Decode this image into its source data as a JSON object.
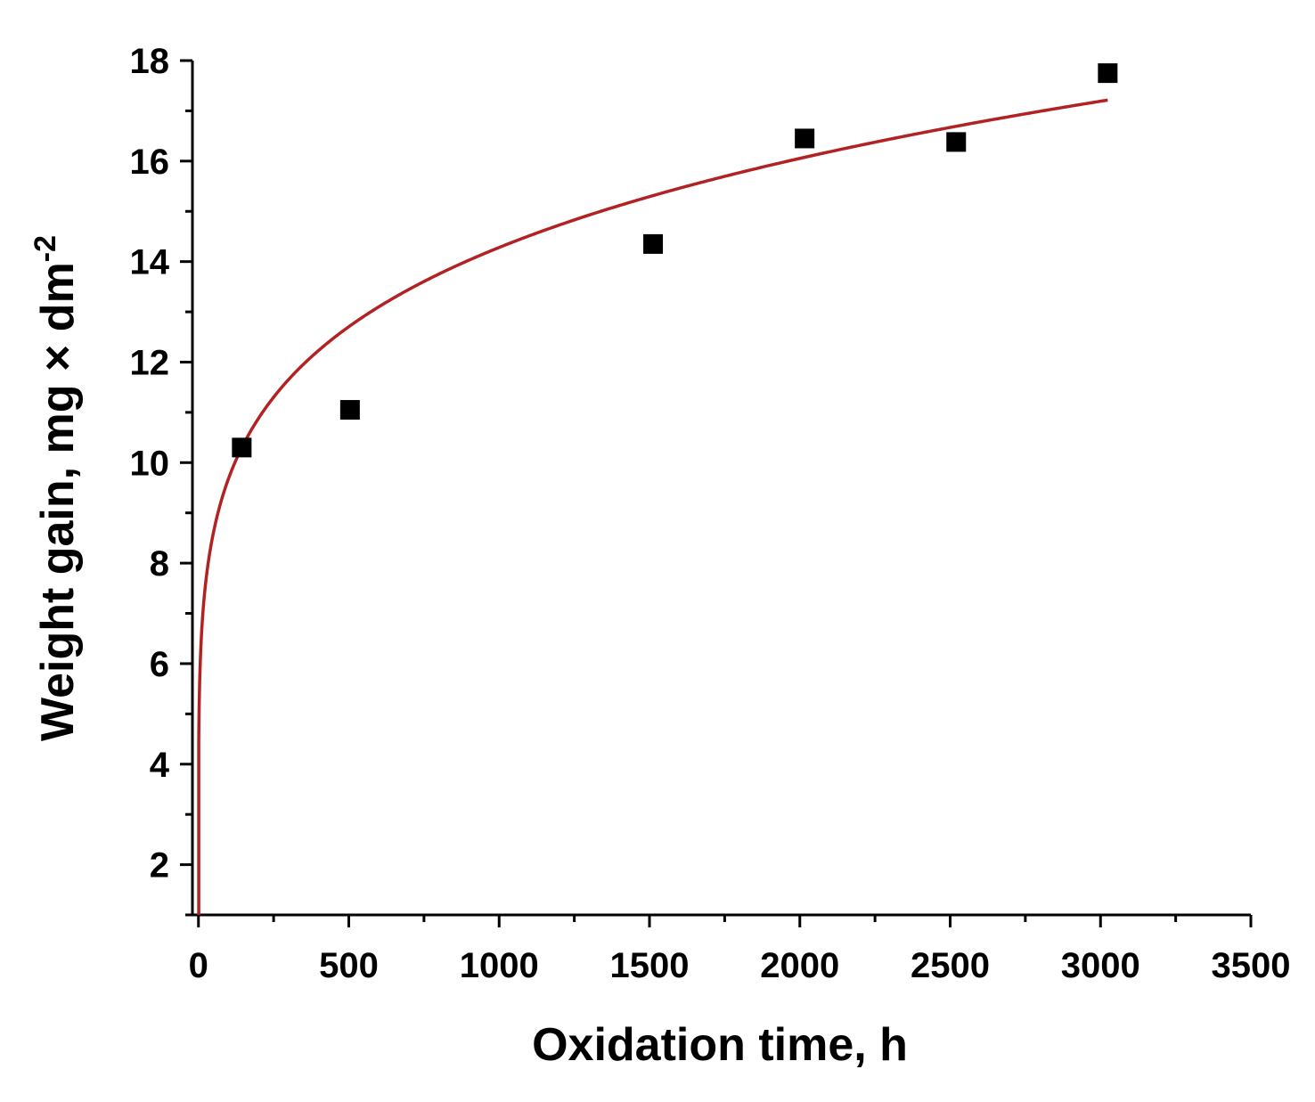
{
  "chart_data": {
    "type": "scatter",
    "title": "",
    "xlabel": "Oxidation time, h",
    "ylabel": {
      "main": "Weight gain, mg × dm",
      "superscript": "-2"
    },
    "xlim": [
      -20,
      3500
    ],
    "ylim": [
      1,
      18
    ],
    "x_ticks": [
      0,
      500,
      1000,
      1500,
      2000,
      2500,
      3000,
      3500
    ],
    "y_ticks": [
      2,
      4,
      6,
      8,
      10,
      12,
      14,
      16,
      18
    ],
    "x_tick_labels": [
      "0",
      "500",
      "1000",
      "1500",
      "2000",
      "2500",
      "3000",
      "3500"
    ],
    "y_tick_labels": [
      "2",
      "4",
      "6",
      "8",
      "10",
      "12",
      "14",
      "16",
      "18"
    ],
    "grid": false,
    "legend": "none",
    "series": [
      {
        "kind": "markers",
        "marker": "square",
        "color": "#000000",
        "x": [
          144,
          504,
          1512,
          2016,
          2520,
          3024
        ],
        "y": [
          10.3,
          11.05,
          14.35,
          16.45,
          16.38,
          17.75
        ]
      },
      {
        "kind": "fit-curve",
        "color": "#b22222",
        "model": "power",
        "coefficient": 4.45,
        "exponent": 0.1688,
        "x_range": [
          1,
          3024
        ]
      }
    ]
  }
}
